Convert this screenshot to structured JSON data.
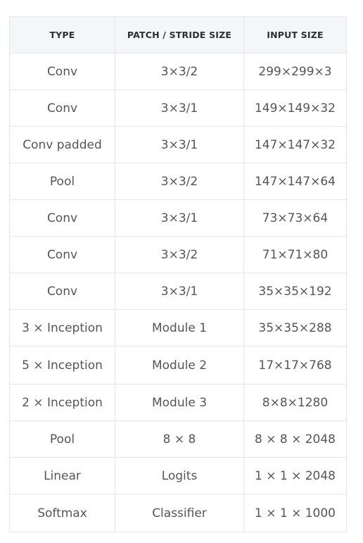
{
  "table": {
    "headers": [
      "TYPE",
      "PATCH / STRIDE SIZE",
      "INPUT SIZE"
    ],
    "rows": [
      [
        "Conv",
        "3×3/2",
        "299×299×3"
      ],
      [
        "Conv",
        "3×3/1",
        "149×149×32"
      ],
      [
        "Conv padded",
        "3×3/1",
        "147×147×32"
      ],
      [
        "Pool",
        "3×3/2",
        "147×147×64"
      ],
      [
        "Conv",
        "3×3/1",
        "73×73×64"
      ],
      [
        "Conv",
        "3×3/2",
        "71×71×80"
      ],
      [
        "Conv",
        "3×3/1",
        "35×35×192"
      ],
      [
        "3 × Inception",
        "Module 1",
        "35×35×288"
      ],
      [
        "5 × Inception",
        "Module 2",
        "17×17×768"
      ],
      [
        "2 × Inception",
        "Module 3",
        "8×8×1280"
      ],
      [
        "Pool",
        "8 × 8",
        "8 × 8 × 2048"
      ],
      [
        "Linear",
        "Logits",
        "1 × 1 × 2048"
      ],
      [
        "Softmax",
        "Classifier",
        "1 × 1 × 1000"
      ]
    ]
  }
}
